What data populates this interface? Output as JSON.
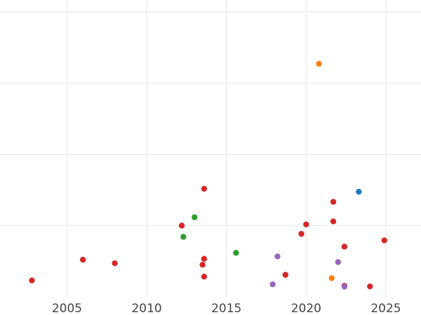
{
  "chart_data": {
    "type": "scatter",
    "title": "",
    "xlabel": "",
    "ylabel": "",
    "xlim": [
      2000.8,
      2027.2
    ],
    "ylim": [
      0,
      1
    ],
    "grid": true,
    "legend": "none",
    "x_ticks": [
      2005,
      2010,
      2015,
      2020,
      2025
    ],
    "x_tick_labels": [
      "2005",
      "2010",
      "2015",
      "2020",
      "2025"
    ],
    "y_gridlines": [
      0.24,
      0.48,
      0.72,
      0.96
    ],
    "series": [
      {
        "color": "#d62728",
        "points": [
          {
            "x": 2002.8,
            "y": 0.055
          },
          {
            "x": 2006.0,
            "y": 0.125
          },
          {
            "x": 2008.0,
            "y": 0.113
          },
          {
            "x": 2012.2,
            "y": 0.24
          },
          {
            "x": 2013.6,
            "y": 0.364
          },
          {
            "x": 2013.6,
            "y": 0.128
          },
          {
            "x": 2013.5,
            "y": 0.108
          },
          {
            "x": 2013.6,
            "y": 0.068
          },
          {
            "x": 2018.7,
            "y": 0.074
          },
          {
            "x": 2019.7,
            "y": 0.212
          },
          {
            "x": 2020.0,
            "y": 0.244
          },
          {
            "x": 2021.7,
            "y": 0.32
          },
          {
            "x": 2021.7,
            "y": 0.254
          },
          {
            "x": 2022.4,
            "y": 0.169
          },
          {
            "x": 2022.4,
            "y": 0.037
          },
          {
            "x": 2024.0,
            "y": 0.035
          },
          {
            "x": 2024.9,
            "y": 0.19
          }
        ]
      },
      {
        "color": "#2ca02c",
        "points": [
          {
            "x": 2012.3,
            "y": 0.202
          },
          {
            "x": 2013.0,
            "y": 0.268
          },
          {
            "x": 2015.6,
            "y": 0.148
          }
        ]
      },
      {
        "color": "#9467bd",
        "points": [
          {
            "x": 2017.9,
            "y": 0.042
          },
          {
            "x": 2018.2,
            "y": 0.136
          },
          {
            "x": 2022.0,
            "y": 0.117
          },
          {
            "x": 2022.4,
            "y": 0.034
          }
        ]
      },
      {
        "color": "#ff7f0e",
        "points": [
          {
            "x": 2020.8,
            "y": 0.785
          },
          {
            "x": 2021.6,
            "y": 0.063
          }
        ]
      },
      {
        "color": "#1f77b4",
        "points": [
          {
            "x": 2023.3,
            "y": 0.354
          }
        ]
      }
    ]
  }
}
